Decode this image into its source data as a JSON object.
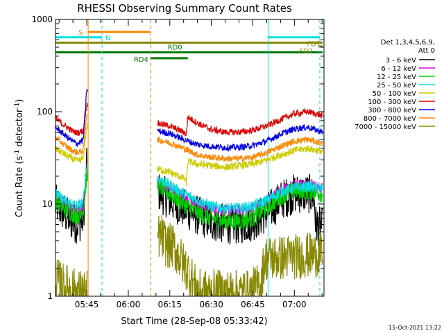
{
  "chart_data": {
    "type": "line",
    "title": "RHESSI Observing Summary Count Rates",
    "xlabel": "Start Time (28-Sep-08 05:33:42)",
    "ylabel_main": "Count Rate (s",
    "ylabel_sup": "-1",
    "ylabel_tail": " detector",
    "ylabel_sup2": "-1",
    "ylabel_end": ")",
    "y_scale": "log",
    "ylim": [
      1,
      1000
    ],
    "y_ticks": [
      "1",
      "10",
      "100",
      "1000"
    ],
    "x_range_min": [
      0,
      97
    ],
    "x_ticks": [
      {
        "min": 11.3,
        "label": "05:45"
      },
      {
        "min": 26.3,
        "label": "06:00"
      },
      {
        "min": 41.3,
        "label": "06:15"
      },
      {
        "min": 56.3,
        "label": "06:30"
      },
      {
        "min": 71.3,
        "label": "06:45"
      },
      {
        "min": 86.3,
        "label": "07:00"
      }
    ],
    "legend": {
      "header": [
        "Det 1,3,4,5,6,9,",
        "Att 0"
      ],
      "placement": "right",
      "entries": [
        {
          "label": "3 - 6 keV",
          "color": "#000000"
        },
        {
          "label": "6 - 12 keV",
          "color": "#e000e0"
        },
        {
          "label": "12 - 25 keV",
          "color": "#00cc00"
        },
        {
          "label": "25 - 50 keV",
          "color": "#00e0e0"
        },
        {
          "label": "50 - 100 keV",
          "color": "#cccc00"
        },
        {
          "label": "100 - 300 keV",
          "color": "#e00000"
        },
        {
          "label": "300 - 800 keV",
          "color": "#0000e0"
        },
        {
          "label": "800 - 7000 keV",
          "color": "#ff8800"
        },
        {
          "label": "7000 - 15000 keV",
          "color": "#888800"
        }
      ]
    },
    "flag_bars": [
      {
        "label": "S",
        "color": "#ff8800",
        "start_min": 11.8,
        "end_min": 34.3,
        "level": 730
      },
      {
        "label": "N",
        "color": "#00e0e0",
        "start_min": 0.0,
        "end_min": 16.8,
        "level": 640
      },
      {
        "label": "N",
        "color": "#00e0e0",
        "start_min": 76.8,
        "end_min": 95.5,
        "level": 640
      },
      {
        "label": "FDT",
        "color": "#888800",
        "start_min": 0.0,
        "end_min": 96.5,
        "level": 560
      },
      {
        "label": "FD2",
        "color": "#888800",
        "start_min": 95.0,
        "end_min": 96.5,
        "level": 510
      },
      {
        "label": "RD0",
        "color": "#007700",
        "start_min": 0.0,
        "end_min": 96.5,
        "level": 440
      },
      {
        "label": "RD4",
        "color": "#007700",
        "start_min": 34.3,
        "end_min": 47.8,
        "level": 380
      }
    ],
    "vlines": [
      {
        "min": 0.0,
        "color": "#00e0e0",
        "style": "solid"
      },
      {
        "min": 11.8,
        "color": "#ff8800",
        "style": "solid"
      },
      {
        "min": 16.8,
        "color": "#00e0e0",
        "style": "dashed"
      },
      {
        "min": 34.3,
        "color": "#ff8800",
        "style": "dashed"
      },
      {
        "min": 76.8,
        "color": "#00e0e0",
        "style": "solid"
      },
      {
        "min": 95.5,
        "color": "#00e0e0",
        "style": "dashed"
      }
    ],
    "series": [
      {
        "name": "3 - 6 keV",
        "color": "#000000",
        "noise": 0.22,
        "points": [
          [
            0,
            10
          ],
          [
            3,
            8
          ],
          [
            6,
            6.5
          ],
          [
            8,
            6
          ],
          [
            10,
            7
          ],
          [
            11.3,
            25
          ],
          [
            36.8,
            14
          ],
          [
            41.3,
            11
          ],
          [
            46.3,
            9
          ],
          [
            51.3,
            7.5
          ],
          [
            56.3,
            6.5
          ],
          [
            61.3,
            6
          ],
          [
            66.3,
            6
          ],
          [
            71.3,
            6.5
          ],
          [
            76.3,
            8
          ],
          [
            81.3,
            11
          ],
          [
            86.3,
            13
          ],
          [
            91.3,
            13
          ],
          [
            93.5,
            12
          ],
          [
            94,
            6
          ],
          [
            96.5,
            5.5
          ]
        ]
      },
      {
        "name": "6 - 12 keV",
        "color": "#e000e0",
        "noise": 0.06,
        "points": [
          [
            0,
            12
          ],
          [
            3,
            10.5
          ],
          [
            6,
            9
          ],
          [
            8,
            8.5
          ],
          [
            10,
            9
          ],
          [
            11.3,
            24
          ],
          [
            36.8,
            17.5
          ],
          [
            41.3,
            15
          ],
          [
            46.3,
            12.5
          ],
          [
            51.3,
            10
          ],
          [
            56.3,
            9
          ],
          [
            61.3,
            8.5
          ],
          [
            66.3,
            8.5
          ],
          [
            71.3,
            9
          ],
          [
            76.3,
            11
          ],
          [
            81.3,
            14
          ],
          [
            86.3,
            16
          ],
          [
            91.3,
            16
          ],
          [
            96.5,
            15
          ]
        ]
      },
      {
        "name": "12 - 25 keV",
        "color": "#00cc00",
        "noise": 0.1,
        "points": [
          [
            0,
            11
          ],
          [
            3,
            9
          ],
          [
            6,
            8
          ],
          [
            8,
            7.5
          ],
          [
            10,
            8.5
          ],
          [
            11.3,
            20
          ],
          [
            36.8,
            16
          ],
          [
            41.3,
            13
          ],
          [
            46.3,
            10
          ],
          [
            51.3,
            8
          ],
          [
            56.3,
            7
          ],
          [
            61.3,
            6.5
          ],
          [
            66.3,
            6.5
          ],
          [
            71.3,
            7
          ],
          [
            76.3,
            9
          ],
          [
            81.3,
            12
          ],
          [
            86.3,
            14
          ],
          [
            91.3,
            14
          ],
          [
            96.5,
            13
          ]
        ]
      },
      {
        "name": "25 - 50 keV",
        "color": "#00e0e0",
        "noise": 0.06,
        "points": [
          [
            0,
            13
          ],
          [
            3,
            11
          ],
          [
            6,
            10
          ],
          [
            8,
            9.5
          ],
          [
            10,
            10.5
          ],
          [
            11.3,
            26
          ],
          [
            36.8,
            19
          ],
          [
            41.3,
            16
          ],
          [
            46.3,
            13
          ],
          [
            51.3,
            11
          ],
          [
            56.3,
            9.5
          ],
          [
            61.3,
            9
          ],
          [
            66.3,
            9
          ],
          [
            71.3,
            9.5
          ],
          [
            76.3,
            11
          ],
          [
            81.3,
            13.5
          ],
          [
            86.3,
            15
          ],
          [
            91.3,
            15.5
          ],
          [
            96.5,
            14.5
          ]
        ]
      },
      {
        "name": "50 - 100 keV",
        "color": "#cccc00",
        "noise": 0.04,
        "points": [
          [
            0,
            40
          ],
          [
            3,
            35
          ],
          [
            6,
            31
          ],
          [
            8,
            29
          ],
          [
            10,
            31
          ],
          [
            11.3,
            70
          ],
          [
            36.8,
            24
          ],
          [
            41.3,
            22
          ],
          [
            46.3,
            19
          ],
          [
            47.3,
            17
          ],
          [
            47.8,
            29
          ],
          [
            51.3,
            27
          ],
          [
            56.3,
            26
          ],
          [
            61.3,
            25
          ],
          [
            66.3,
            26
          ],
          [
            71.3,
            27
          ],
          [
            76.3,
            30
          ],
          [
            81.3,
            34
          ],
          [
            86.3,
            38
          ],
          [
            91.3,
            40
          ],
          [
            96.5,
            37
          ]
        ]
      },
      {
        "name": "100 - 300 keV",
        "color": "#e00000",
        "noise": 0.035,
        "points": [
          [
            0,
            85
          ],
          [
            3,
            72
          ],
          [
            6,
            62
          ],
          [
            8,
            59
          ],
          [
            10,
            62
          ],
          [
            11.3,
            120
          ],
          [
            36.8,
            75
          ],
          [
            41.3,
            70
          ],
          [
            46.3,
            60
          ],
          [
            47.3,
            57
          ],
          [
            47.8,
            88
          ],
          [
            51.3,
            75
          ],
          [
            56.3,
            64
          ],
          [
            61.3,
            60
          ],
          [
            66.3,
            60
          ],
          [
            71.3,
            63
          ],
          [
            76.3,
            70
          ],
          [
            81.3,
            82
          ],
          [
            86.3,
            95
          ],
          [
            91.3,
            100
          ],
          [
            96.5,
            90
          ]
        ]
      },
      {
        "name": "300 - 800 keV",
        "color": "#0000e0",
        "noise": 0.035,
        "points": [
          [
            0,
            68
          ],
          [
            3,
            57
          ],
          [
            6,
            48
          ],
          [
            8,
            45
          ],
          [
            10,
            49
          ],
          [
            11.3,
            175
          ],
          [
            36.8,
            62
          ],
          [
            41.3,
            58
          ],
          [
            46.3,
            50
          ],
          [
            51.3,
            44
          ],
          [
            56.3,
            42
          ],
          [
            61.3,
            41
          ],
          [
            66.3,
            41
          ],
          [
            71.3,
            43
          ],
          [
            76.3,
            48
          ],
          [
            81.3,
            57
          ],
          [
            86.3,
            65
          ],
          [
            91.3,
            68
          ],
          [
            96.5,
            60
          ]
        ]
      },
      {
        "name": "800 - 7000 keV",
        "color": "#ff8800",
        "noise": 0.035,
        "points": [
          [
            0,
            53
          ],
          [
            3,
            44
          ],
          [
            6,
            38
          ],
          [
            8,
            36
          ],
          [
            10,
            38
          ],
          [
            11.3,
            95
          ],
          [
            36.8,
            50
          ],
          [
            41.3,
            46
          ],
          [
            46.3,
            40
          ],
          [
            51.3,
            34
          ],
          [
            56.3,
            32
          ],
          [
            61.3,
            31
          ],
          [
            66.3,
            31
          ],
          [
            71.3,
            32
          ],
          [
            76.3,
            36
          ],
          [
            81.3,
            42
          ],
          [
            86.3,
            48
          ],
          [
            91.3,
            50
          ],
          [
            96.5,
            45
          ]
        ]
      },
      {
        "name": "7000 - 15000 keV",
        "color": "#888800",
        "noise": 0.25,
        "points": [
          [
            0,
            1.5
          ],
          [
            3,
            1.3
          ],
          [
            6,
            1.2
          ],
          [
            8,
            1.1
          ],
          [
            10,
            1.1
          ],
          [
            11.3,
            1.1
          ],
          [
            36.8,
            4.5
          ],
          [
            38.3,
            4.5
          ],
          [
            40.3,
            3.5
          ],
          [
            42.3,
            3.5
          ],
          [
            44.3,
            2.8
          ],
          [
            46.3,
            2.2
          ],
          [
            48.3,
            1.8
          ],
          [
            50.3,
            1.3
          ],
          [
            52.3,
            1.1
          ],
          [
            70.3,
            1.1
          ],
          [
            73.3,
            1.3
          ],
          [
            74.3,
            1.4
          ],
          [
            75.3,
            2.3
          ],
          [
            76.3,
            2.6
          ],
          [
            80.3,
            2.6
          ],
          [
            84.3,
            2.7
          ],
          [
            88.3,
            2.7
          ],
          [
            92.3,
            2.8
          ],
          [
            96.5,
            2.8
          ]
        ]
      }
    ]
  },
  "footer_timestamp": "15-Oct-2021 13:22"
}
